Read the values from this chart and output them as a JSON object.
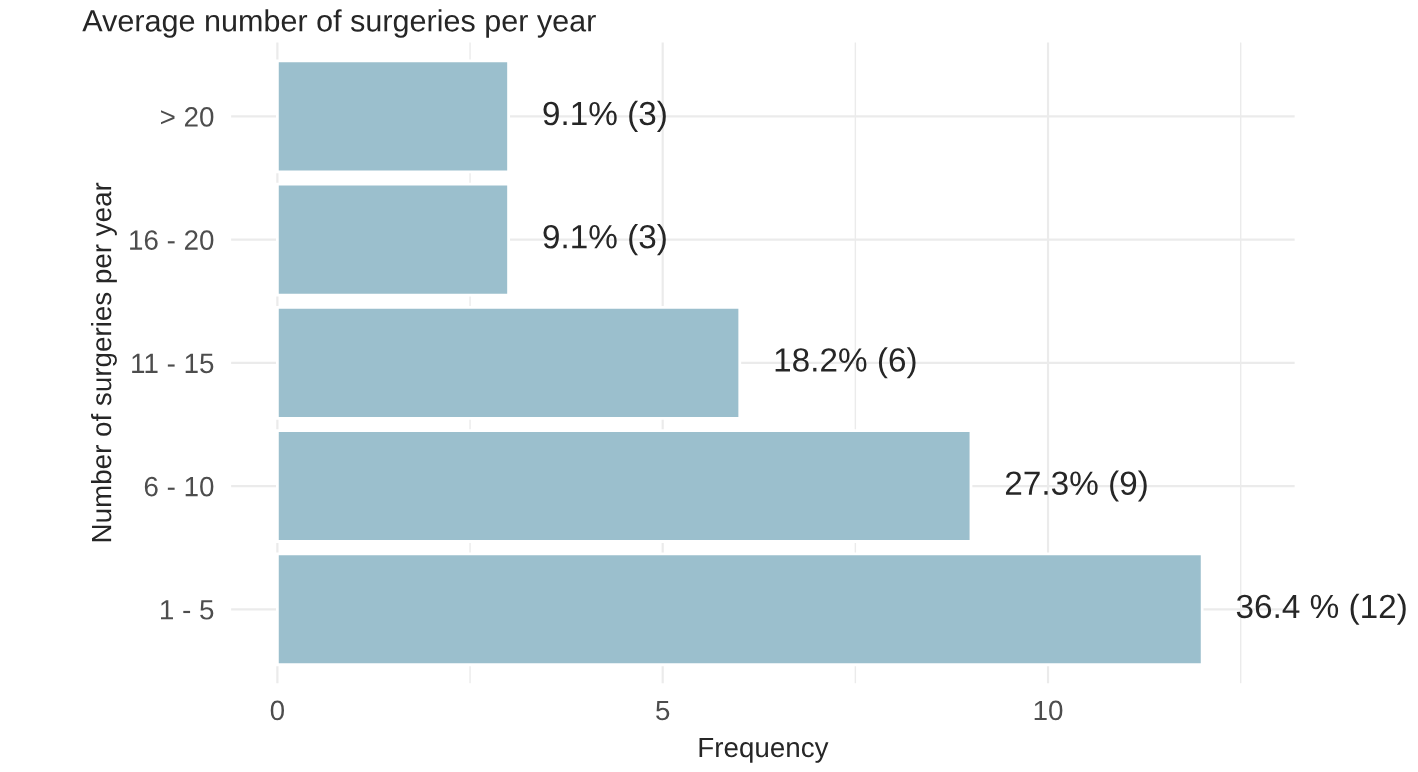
{
  "chart_data": {
    "type": "bar",
    "orientation": "horizontal",
    "title": "Average number of surgeries per year",
    "xlabel": "Frequency",
    "ylabel": "Number of surgeries per year",
    "categories": [
      "> 20",
      "16 - 20",
      "11 - 15",
      "6 - 10",
      "1 - 5"
    ],
    "values": [
      3,
      3,
      6,
      9,
      12
    ],
    "value_labels": [
      "9.1% (3)",
      "9.1% (3)",
      "18.2% (6)",
      "27.3% (9)",
      "36.4 % (12)"
    ],
    "color": "#9bbfcd",
    "xlim": [
      -0.6,
      13.2
    ],
    "xticks": [
      0,
      5,
      10
    ],
    "grid": true
  }
}
